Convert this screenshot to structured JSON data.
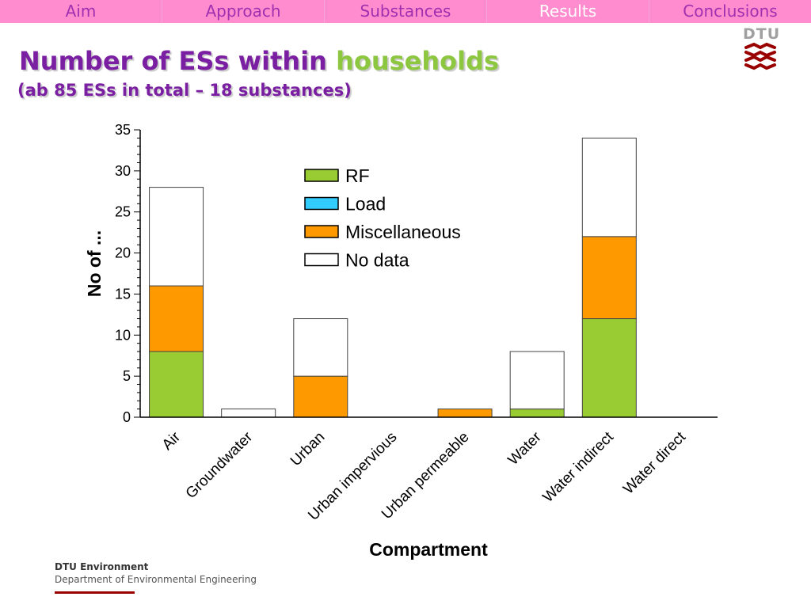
{
  "nav": {
    "tabs": [
      {
        "label": "Aim",
        "active": false
      },
      {
        "label": "Approach",
        "active": false
      },
      {
        "label": "Substances",
        "active": false
      },
      {
        "label": "Results",
        "active": true
      },
      {
        "label": "Conclusions",
        "active": false
      }
    ]
  },
  "slide": {
    "title_part1": "Number of ESs within ",
    "title_highlight": "households",
    "subtitle": "(ab 85 ESs in total – 18 substances)"
  },
  "logo": {
    "text": "DTU"
  },
  "footer": {
    "line1": "DTU Environment",
    "line2": "Department of Environmental Engineering"
  },
  "colors": {
    "nav_bg": "#ff8ccf",
    "nav_text": "#a030b0",
    "nav_active_text": "#ffffff",
    "title": "#7b1fa2",
    "title_highlight": "#8dc63f",
    "footer_bar": "#990000"
  },
  "chart_data": {
    "type": "bar",
    "stacked": true,
    "categories": [
      "Air",
      "Groundwater",
      "Urban",
      "Urban impervious",
      "Urban permeable",
      "Water",
      "Water indirect",
      "Water direct"
    ],
    "series": [
      {
        "name": "RF",
        "color": "#99cc33",
        "values": [
          8,
          0,
          0,
          0,
          0,
          1,
          12,
          0
        ]
      },
      {
        "name": "Load",
        "color": "#33ccff",
        "values": [
          0,
          0,
          0,
          0,
          0,
          0,
          0,
          0
        ]
      },
      {
        "name": "Miscellaneous",
        "color": "#ff9900",
        "values": [
          8,
          0,
          5,
          0,
          1,
          0,
          10,
          0
        ]
      },
      {
        "name": "No data",
        "color": "#ffffff",
        "values": [
          12,
          1,
          7,
          0,
          0,
          7,
          12,
          0
        ]
      }
    ],
    "xlabel": "Compartment",
    "ylabel": "No of ...",
    "ylim": [
      0,
      35
    ],
    "yticks": [
      0,
      5,
      10,
      15,
      20,
      25,
      30,
      35
    ],
    "grid": false,
    "legend_position": "top-center"
  }
}
